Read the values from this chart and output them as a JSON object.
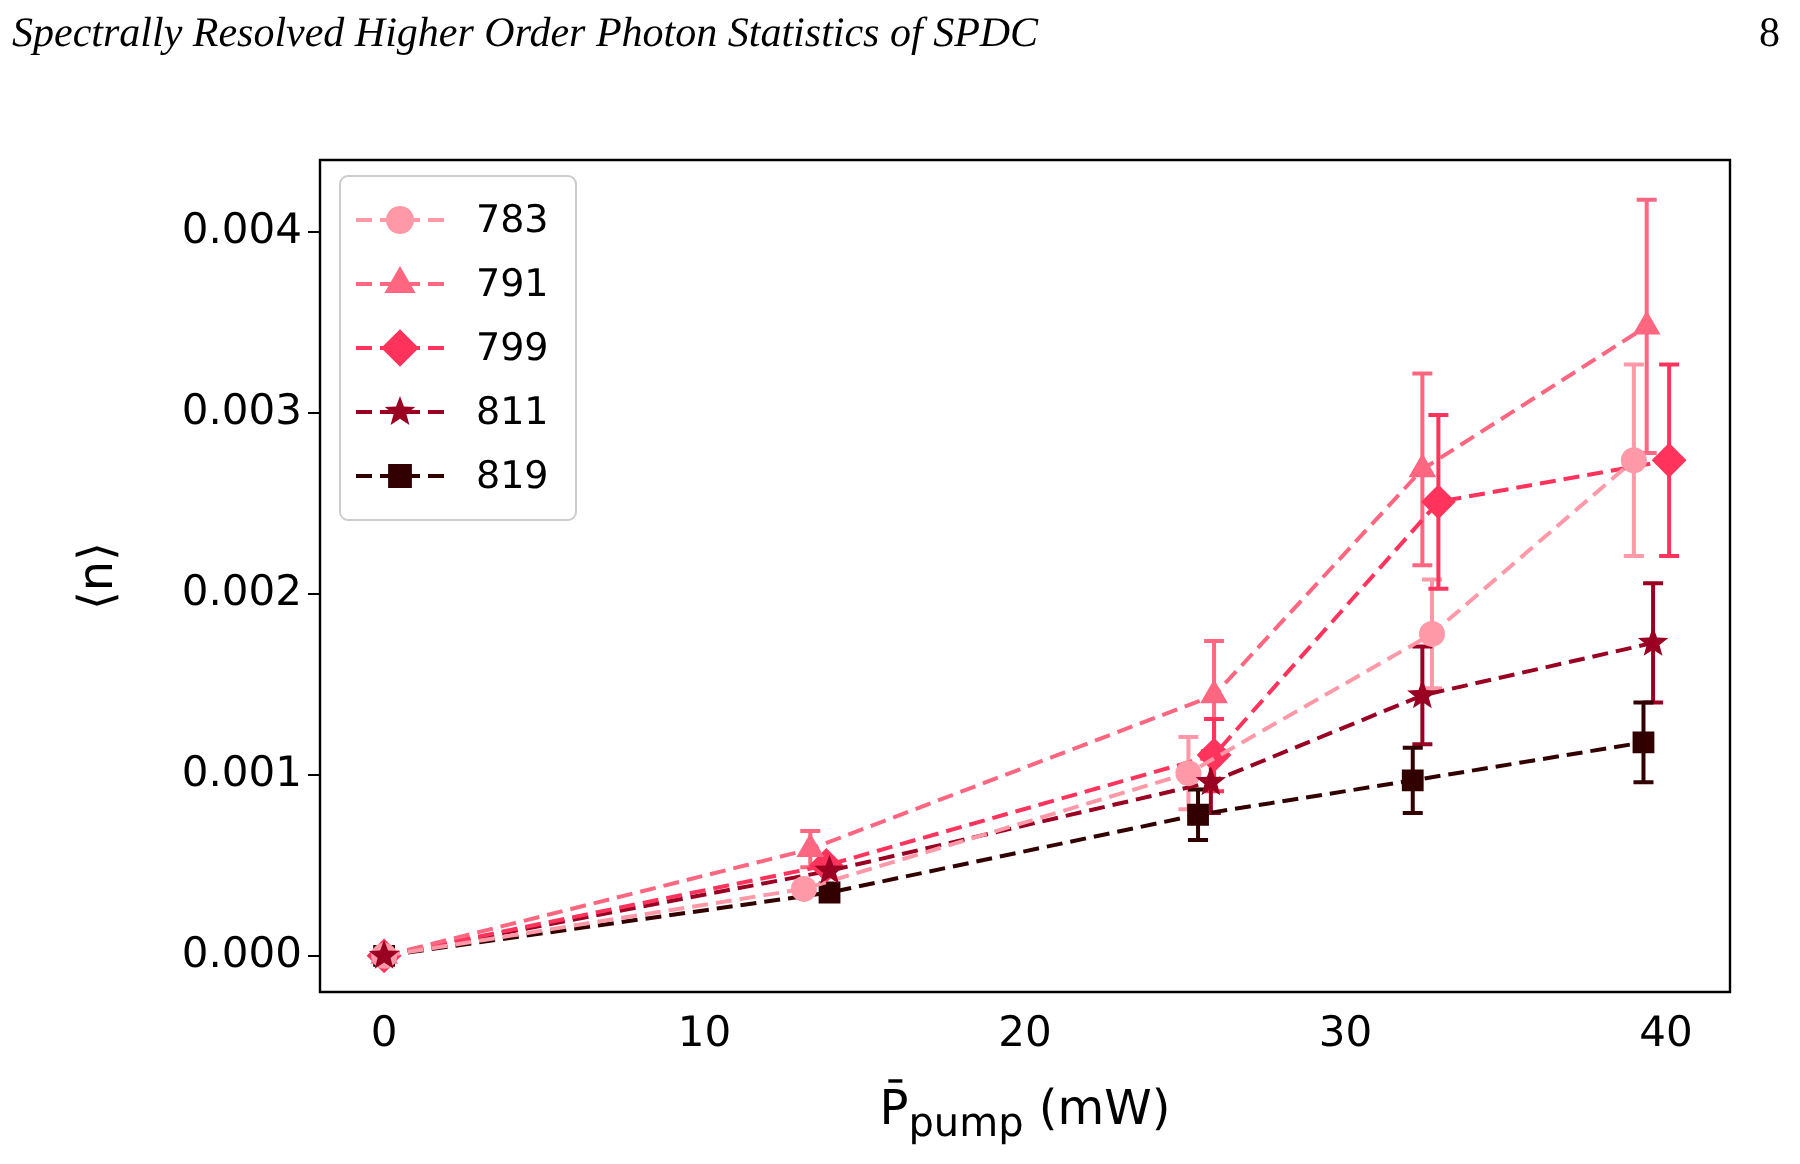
{
  "chart_data": {
    "type": "line",
    "annotations": [
      "Spectrally Resolved Higher Order Photon Statistics of SPDC",
      "8"
    ],
    "xlabel": "P̄$_{pump}$ (mW)",
    "ylabel": "⟨n⟩",
    "xlim": [
      -2,
      42
    ],
    "xticks": [
      0,
      10,
      20,
      30,
      40
    ],
    "ylim": [
      -0.0002,
      0.0044
    ],
    "yticks": [
      {
        "value": 0,
        "label": "0.000"
      },
      {
        "value": 0.001,
        "label": "0.001"
      },
      {
        "value": 0.002,
        "label": "0.002"
      },
      {
        "value": 0.003,
        "label": "0.003"
      },
      {
        "value": 0.004,
        "label": "0.004"
      }
    ],
    "grid": false,
    "legend": "top left",
    "line_style": "dashed",
    "series": [
      {
        "name": "783",
        "color": "#ff99a8",
        "marker": "circle",
        "x": [
          0,
          13.1,
          25.1,
          32.7,
          39.0
        ],
        "values": [
          0,
          0.00037,
          0.00101,
          0.00178,
          0.00274
        ],
        "errors": [
          null,
          null,
          0.0002,
          0.0003,
          0.00053
        ]
      },
      {
        "name": "791",
        "color": "#ff6680",
        "marker": "triangle",
        "x": [
          0,
          13.3,
          25.9,
          32.4,
          39.4
        ],
        "values": [
          0,
          0.00059,
          0.00144,
          0.00269,
          0.00348
        ],
        "errors": [
          null,
          0.0001,
          0.0003,
          0.00053,
          0.0007
        ]
      },
      {
        "name": "799",
        "color": "#ff335c",
        "marker": "diamond",
        "x": [
          0,
          13.8,
          25.9,
          32.9,
          40.1
        ],
        "values": [
          0,
          0.0005,
          0.00111,
          0.00251,
          0.00274
        ],
        "errors": [
          null,
          null,
          0.0002,
          0.00048,
          0.00053
        ]
      },
      {
        "name": "811",
        "color": "#990022",
        "marker": "star",
        "x": [
          0,
          13.9,
          25.8,
          32.4,
          39.6
        ],
        "values": [
          0,
          0.00047,
          0.00096,
          0.00144,
          0.00173
        ],
        "errors": [
          null,
          null,
          0.00017,
          0.00027,
          0.00033
        ]
      },
      {
        "name": "819",
        "color": "#330000",
        "marker": "square",
        "x": [
          0,
          13.9,
          25.4,
          32.1,
          39.3
        ],
        "values": [
          0,
          0.00035,
          0.00078,
          0.00097,
          0.00118
        ],
        "errors": [
          null,
          null,
          0.00014,
          0.00018,
          0.00022
        ]
      }
    ]
  }
}
